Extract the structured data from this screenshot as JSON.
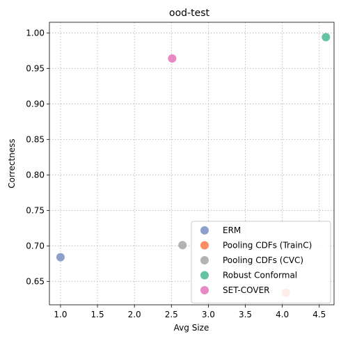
{
  "chart_data": {
    "type": "scatter",
    "title": "ood-test",
    "xlabel": "Avg Size",
    "ylabel": "Correctness",
    "xlim": [
      0.85,
      4.7
    ],
    "ylim": [
      0.617,
      1.015
    ],
    "xticks": [
      1.0,
      1.5,
      2.0,
      2.5,
      3.0,
      3.5,
      4.0,
      4.5
    ],
    "xtick_labels": [
      "1.0",
      "1.5",
      "2.0",
      "2.5",
      "3.0",
      "3.5",
      "4.0",
      "4.5"
    ],
    "yticks": [
      0.65,
      0.7,
      0.75,
      0.8,
      0.85,
      0.9,
      0.95,
      1.0
    ],
    "ytick_labels": [
      "0.65",
      "0.70",
      "0.75",
      "0.80",
      "0.85",
      "0.90",
      "0.95",
      "1.00"
    ],
    "grid": true,
    "legend_position": "lower-right",
    "series": [
      {
        "name": "ERM",
        "color": "#8da0cb",
        "x": [
          1.0
        ],
        "y": [
          0.684
        ]
      },
      {
        "name": "Pooling CDFs (TrainC)",
        "color": "#fc8d62",
        "x": [
          4.05
        ],
        "y": [
          0.634
        ]
      },
      {
        "name": "Pooling CDFs (CVC)",
        "color": "#b3b3b3",
        "x": [
          2.65
        ],
        "y": [
          0.701
        ]
      },
      {
        "name": "Robust Conformal",
        "color": "#66c2a5",
        "x": [
          4.59
        ],
        "y": [
          0.994
        ]
      },
      {
        "name": "SET-COVER",
        "color": "#e78ac3",
        "x": [
          2.51
        ],
        "y": [
          0.964
        ]
      }
    ]
  }
}
